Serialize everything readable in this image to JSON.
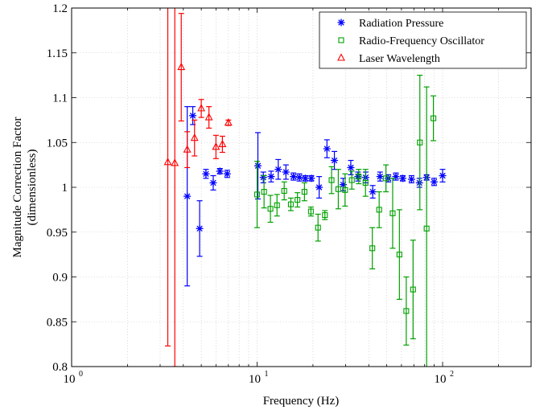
{
  "chart_data": {
    "type": "scatter",
    "title": "",
    "xlabel": "Frequency (Hz)",
    "ylabel_lines": [
      "Magnitude Correction Factor",
      "(dimensionless)"
    ],
    "x_scale": "log",
    "xlim": [
      1,
      300
    ],
    "ylim": [
      0.8,
      1.2
    ],
    "grid": true,
    "legend_position": "top-right",
    "x_ticks": [
      {
        "value": 1,
        "base": "10",
        "exp": "0"
      },
      {
        "value": 10,
        "base": "10",
        "exp": "1"
      },
      {
        "value": 100,
        "base": "10",
        "exp": "2"
      }
    ],
    "y_ticks": [
      {
        "value": 0.8,
        "label": "0.8"
      },
      {
        "value": 0.85,
        "label": "0.85"
      },
      {
        "value": 0.9,
        "label": "0.9"
      },
      {
        "value": 0.95,
        "label": "0.95"
      },
      {
        "value": 1.0,
        "label": "1"
      },
      {
        "value": 1.05,
        "label": "1.05"
      },
      {
        "value": 1.1,
        "label": "1.1"
      },
      {
        "value": 1.15,
        "label": "1.15"
      },
      {
        "value": 1.2,
        "label": "1.2"
      }
    ],
    "series": [
      {
        "name": "Radiation Pressure",
        "marker": "asterisk",
        "color": "#0000ff",
        "points": [
          {
            "x": 4.2,
            "y": 0.99,
            "err": 0.1
          },
          {
            "x": 4.5,
            "y": 1.08,
            "err": 0.01
          },
          {
            "x": 4.9,
            "y": 0.954,
            "err": 0.031
          },
          {
            "x": 5.3,
            "y": 1.015,
            "err": 0.005
          },
          {
            "x": 5.8,
            "y": 1.005,
            "err": 0.008
          },
          {
            "x": 6.3,
            "y": 1.018,
            "err": 0.003
          },
          {
            "x": 6.9,
            "y": 1.015,
            "err": 0.004
          },
          {
            "x": 10.1,
            "y": 1.024,
            "err": 0.037
          },
          {
            "x": 10.8,
            "y": 1.011,
            "err": 0.006
          },
          {
            "x": 11.9,
            "y": 1.012,
            "err": 0.006
          },
          {
            "x": 13.0,
            "y": 1.02,
            "err": 0.011
          },
          {
            "x": 14.3,
            "y": 1.017,
            "err": 0.008
          },
          {
            "x": 15.7,
            "y": 1.012,
            "err": 0.004
          },
          {
            "x": 16.9,
            "y": 1.011,
            "err": 0.004
          },
          {
            "x": 18.2,
            "y": 1.01,
            "err": 0.003
          },
          {
            "x": 19.6,
            "y": 1.01,
            "err": 0.003
          },
          {
            "x": 21.6,
            "y": 1.0,
            "err": 0.012
          },
          {
            "x": 23.8,
            "y": 1.043,
            "err": 0.01
          },
          {
            "x": 26.1,
            "y": 1.03,
            "err": 0.01
          },
          {
            "x": 29.1,
            "y": 1.003,
            "err": 0.007
          },
          {
            "x": 32.0,
            "y": 1.022,
            "err": 0.008
          },
          {
            "x": 35.0,
            "y": 1.012,
            "err": 0.005
          },
          {
            "x": 38.5,
            "y": 1.011,
            "err": 0.006
          },
          {
            "x": 42.0,
            "y": 0.995,
            "err": 0.007
          },
          {
            "x": 46.0,
            "y": 1.012,
            "err": 0.005
          },
          {
            "x": 51.0,
            "y": 1.01,
            "err": 0.004
          },
          {
            "x": 56.0,
            "y": 1.012,
            "err": 0.004
          },
          {
            "x": 61.0,
            "y": 1.01,
            "err": 0.003
          },
          {
            "x": 68.0,
            "y": 1.009,
            "err": 0.004
          },
          {
            "x": 75.0,
            "y": 1.005,
            "err": 0.005
          },
          {
            "x": 82.0,
            "y": 1.011,
            "err": 0.003
          },
          {
            "x": 90.0,
            "y": 1.006,
            "err": 0.004
          },
          {
            "x": 100.0,
            "y": 1.013,
            "err": 0.007
          }
        ]
      },
      {
        "name": "Radio-Frequency Oscillator",
        "marker": "square",
        "color": "#00a000",
        "points": [
          {
            "x": 10.0,
            "y": 0.992,
            "err": 0.037
          },
          {
            "x": 10.9,
            "y": 0.995,
            "err": 0.018
          },
          {
            "x": 11.8,
            "y": 0.976,
            "err": 0.015
          },
          {
            "x": 12.8,
            "y": 0.98,
            "err": 0.012
          },
          {
            "x": 14.0,
            "y": 0.996,
            "err": 0.01
          },
          {
            "x": 15.2,
            "y": 0.981,
            "err": 0.007
          },
          {
            "x": 16.5,
            "y": 0.986,
            "err": 0.008
          },
          {
            "x": 18.0,
            "y": 0.995,
            "err": 0.01
          },
          {
            "x": 19.5,
            "y": 0.973,
            "err": 0.005
          },
          {
            "x": 21.3,
            "y": 0.955,
            "err": 0.015
          },
          {
            "x": 23.2,
            "y": 0.969,
            "err": 0.005
          },
          {
            "x": 25.2,
            "y": 1.008,
            "err": 0.015
          },
          {
            "x": 27.4,
            "y": 0.998,
            "err": 0.022
          },
          {
            "x": 29.8,
            "y": 0.997,
            "err": 0.018
          },
          {
            "x": 32.4,
            "y": 1.008,
            "err": 0.01
          },
          {
            "x": 35.3,
            "y": 1.012,
            "err": 0.008
          },
          {
            "x": 38.4,
            "y": 1.005,
            "err": 0.015
          },
          {
            "x": 41.8,
            "y": 0.932,
            "err": 0.023
          },
          {
            "x": 45.5,
            "y": 0.975,
            "err": 0.02
          },
          {
            "x": 49.5,
            "y": 1.01,
            "err": 0.015
          },
          {
            "x": 53.8,
            "y": 0.971,
            "err": 0.039
          },
          {
            "x": 58.5,
            "y": 0.925,
            "err": 0.05
          },
          {
            "x": 63.7,
            "y": 0.862,
            "err": 0.038
          },
          {
            "x": 69.3,
            "y": 0.886,
            "err": 0.055
          },
          {
            "x": 75.4,
            "y": 1.05,
            "err": 0.075
          },
          {
            "x": 82.0,
            "y": 0.954,
            "err": 0.158
          },
          {
            "x": 89.2,
            "y": 1.077,
            "err": 0.025
          }
        ]
      },
      {
        "name": "Laser Wavelength",
        "marker": "triangle",
        "color": "#ff0000",
        "points": [
          {
            "x": 3.3,
            "y": 1.028,
            "err": 0.205
          },
          {
            "x": 3.6,
            "y": 1.027,
            "err": 0.227
          },
          {
            "x": 3.9,
            "y": 1.134,
            "err": 0.06
          },
          {
            "x": 4.2,
            "y": 1.042,
            "err": 0.02
          },
          {
            "x": 4.6,
            "y": 1.055,
            "err": 0.02
          },
          {
            "x": 5.0,
            "y": 1.088,
            "err": 0.01
          },
          {
            "x": 5.5,
            "y": 1.078,
            "err": 0.012
          },
          {
            "x": 6.0,
            "y": 1.045,
            "err": 0.013
          },
          {
            "x": 6.5,
            "y": 1.048,
            "err": 0.009
          },
          {
            "x": 7.0,
            "y": 1.072,
            "err": 0.003
          }
        ]
      }
    ]
  }
}
